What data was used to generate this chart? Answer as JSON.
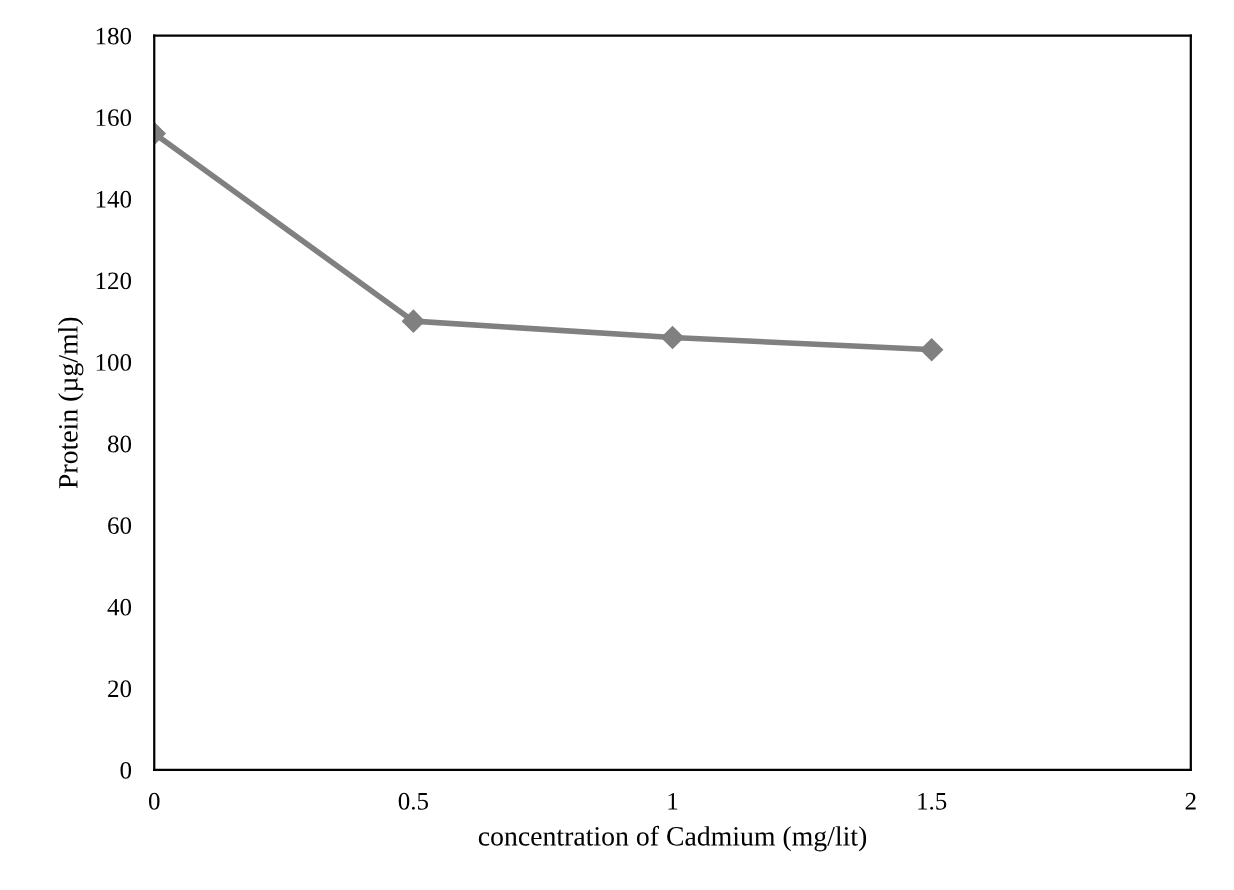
{
  "chart_data": {
    "type": "line",
    "xlabel": "concentration of Cadmium (mg/lit)",
    "ylabel": "Protein (µg/ml)",
    "x": [
      0,
      0.5,
      1,
      1.5
    ],
    "series": [
      {
        "color": "#808080",
        "values": [
          156,
          110,
          106,
          103
        ]
      }
    ],
    "xlim": [
      0,
      2
    ],
    "xticks": [
      0,
      0.5,
      1,
      1.5,
      2
    ],
    "ylim": [
      0,
      180
    ],
    "yticks": [
      0,
      20,
      40,
      60,
      80,
      100,
      120,
      140,
      160,
      180
    ],
    "grid": false,
    "legend": false,
    "marker": "diamond",
    "line_style": "solid"
  }
}
